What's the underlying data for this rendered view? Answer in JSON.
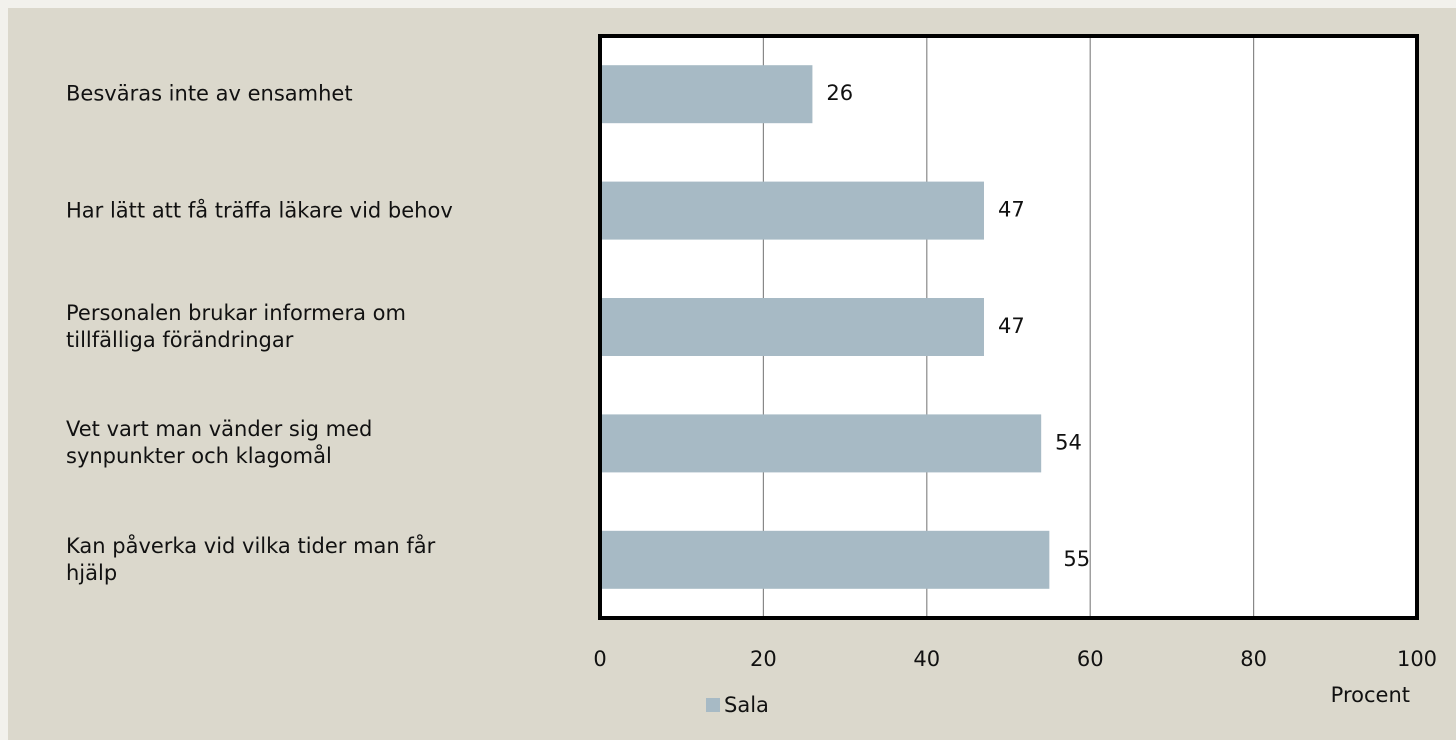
{
  "chart_data": {
    "type": "barh",
    "categories": [
      "Besväras inte av ensamhet",
      "Har lätt att få träffa läkare vid behov",
      "Personalen brukar informera om\ntillfälliga förändringar",
      "Vet vart man vänder sig med\nsynpunkter och klagomål",
      "Kan påverka vid vilka tider man får\nhjälp"
    ],
    "series": [
      {
        "name": "Sala",
        "color": "#a7bac5",
        "values": [
          26,
          47,
          47,
          54,
          55
        ]
      }
    ],
    "xlim": [
      0,
      100
    ],
    "xticks": [
      0,
      20,
      40,
      60,
      80,
      100
    ],
    "xlabel": "Procent",
    "grid": true,
    "legend": "bottom"
  }
}
